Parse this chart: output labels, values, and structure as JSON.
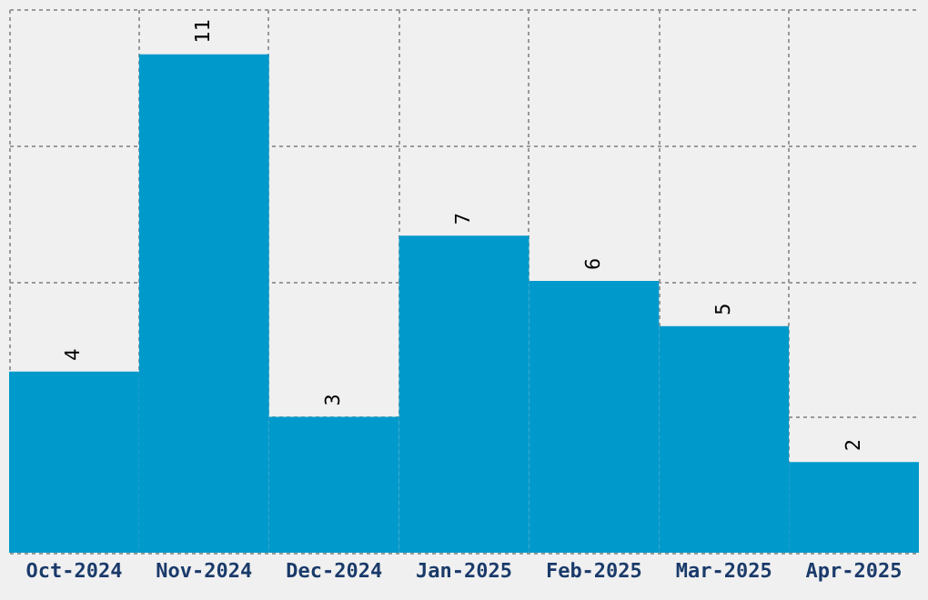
{
  "chart_data": {
    "type": "bar",
    "categories": [
      "Oct-2024",
      "Nov-2024",
      "Dec-2024",
      "Jan-2025",
      "Feb-2025",
      "Mar-2025",
      "Apr-2025"
    ],
    "values": [
      4,
      11,
      3,
      7,
      6,
      5,
      2
    ],
    "color": "#0099cc",
    "ylim": [
      0,
      12
    ],
    "yticks": [
      {
        "value": 0,
        "label": null
      },
      {
        "value": 3,
        "label": null
      },
      {
        "value": 6,
        "label": null
      },
      {
        "value": 9,
        "label": null
      },
      {
        "value": 12,
        "label": null
      }
    ],
    "grid": true,
    "data_labels": true,
    "tick_labels": "x"
  }
}
